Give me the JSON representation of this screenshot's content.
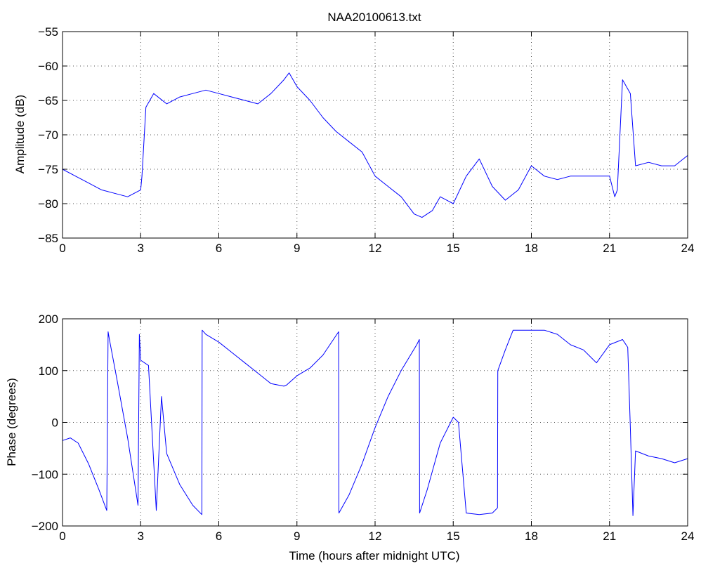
{
  "figure_title": "NAA20100613.txt",
  "colors": {
    "trace": "#0000ff",
    "axes": "#000000",
    "grid": "#555555",
    "background": "#ffffff"
  },
  "chart_data": [
    {
      "type": "line",
      "title": "NAA20100613.txt",
      "xlabel": "",
      "ylabel": "Amplitude (dB)",
      "xlim": [
        0,
        24
      ],
      "ylim": [
        -85,
        -55
      ],
      "xticks": [
        0,
        3,
        6,
        9,
        12,
        15,
        18,
        21,
        24
      ],
      "yticks": [
        -55,
        -60,
        -65,
        -70,
        -75,
        -80,
        -85
      ],
      "grid": true,
      "series": [
        {
          "x": [
            0,
            0.5,
            1,
            1.5,
            2,
            2.5,
            3,
            3.05,
            3.2,
            3.5,
            4,
            4.5,
            5,
            5.5,
            6,
            6.5,
            7,
            7.5,
            8,
            8.5,
            8.7,
            9,
            9.5,
            10,
            10.5,
            11,
            11.5,
            12,
            12.5,
            13,
            13.5,
            13.8,
            14.2,
            14.5,
            15,
            15.5,
            16,
            16.5,
            17,
            17.5,
            18,
            18.5,
            19,
            19.5,
            20,
            20.5,
            21,
            21.2,
            21.3,
            21.5,
            21.8,
            22,
            22.5,
            23,
            23.5,
            24
          ],
          "y": [
            -75,
            -76,
            -77,
            -78,
            -78.5,
            -79,
            -78,
            -76,
            -66,
            -64,
            -65.5,
            -64.5,
            -64,
            -63.5,
            -64,
            -64.5,
            -65,
            -65.5,
            -64,
            -62,
            -61,
            -63,
            -65,
            -67.5,
            -69.5,
            -71,
            -72.5,
            -76,
            -77.5,
            -79,
            -81.5,
            -82,
            -81,
            -79,
            -80,
            -76,
            -73.5,
            -77.5,
            -79.5,
            -78,
            -74.5,
            -76,
            -76.5,
            -76,
            -76,
            -76,
            -76,
            -79,
            -78,
            -62,
            -64,
            -74.5,
            -74,
            -74.5,
            -74.5,
            -73
          ]
        }
      ]
    },
    {
      "type": "line",
      "title": "",
      "xlabel": "Time (hours after midnight UTC)",
      "ylabel": "Phase (degrees)",
      "xlim": [
        0,
        24
      ],
      "ylim": [
        -200,
        200
      ],
      "xticks": [
        0,
        3,
        6,
        9,
        12,
        15,
        18,
        21,
        24
      ],
      "yticks": [
        200,
        100,
        0,
        -100,
        -200
      ],
      "grid": true,
      "series": [
        {
          "x": [
            0,
            0.3,
            0.6,
            1.0,
            1.4,
            1.7,
            1.75,
            1.8,
            2.1,
            2.5,
            2.9,
            2.95,
            3.0,
            3.3,
            3.6,
            3.8,
            4.0,
            4.5,
            5.0,
            5.35,
            5.36,
            5.5,
            6,
            6.5,
            7,
            7.5,
            8,
            8.5,
            8.6,
            9,
            9.5,
            10,
            10.6,
            10.61,
            11,
            11.5,
            12,
            12.5,
            13,
            13.6,
            13.7,
            13.71,
            14,
            14.5,
            15,
            15.2,
            15.5,
            16,
            16.5,
            16.7,
            16.71,
            17,
            17.3,
            17.5,
            18,
            18.5,
            19,
            19.5,
            20,
            20.5,
            21,
            21.5,
            21.7,
            21.8,
            21.9,
            22,
            22.5,
            23,
            23.5,
            24
          ],
          "y": [
            -35,
            -30,
            -40,
            -80,
            -130,
            -170,
            175,
            160,
            80,
            -30,
            -160,
            170,
            120,
            110,
            -170,
            50,
            -60,
            -120,
            -160,
            -178,
            178,
            170,
            155,
            135,
            115,
            95,
            75,
            70,
            72,
            90,
            105,
            130,
            175,
            -175,
            -140,
            -80,
            -10,
            50,
            100,
            150,
            160,
            -175,
            -130,
            -40,
            10,
            0,
            -175,
            -178,
            -175,
            -165,
            100,
            140,
            178,
            178,
            178,
            178,
            170,
            150,
            140,
            115,
            150,
            160,
            145,
            -10,
            -180,
            -55,
            -65,
            -70,
            -78,
            -70
          ]
        }
      ]
    }
  ]
}
